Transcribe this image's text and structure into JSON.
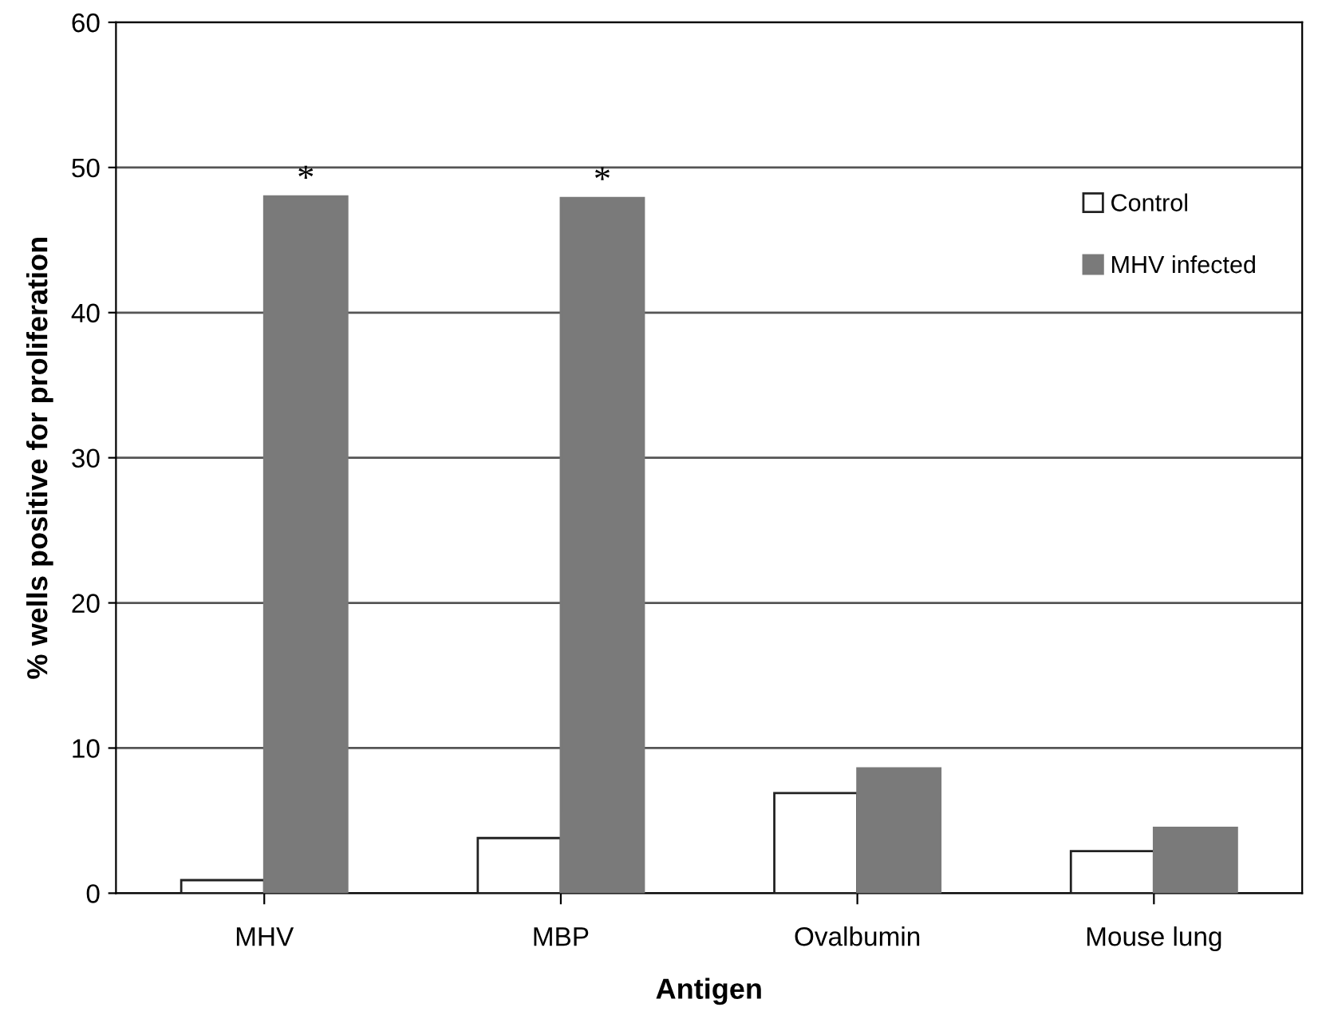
{
  "chart_data": {
    "type": "bar",
    "xlabel": "Antigen",
    "ylabel": "% wells positive for proliferation",
    "categories": [
      "MHV",
      "MBP",
      "Ovalbumin",
      "Mouse lung"
    ],
    "series": [
      {
        "name": "Control",
        "color": "#ffffff",
        "values": [
          0.9,
          3.8,
          6.9,
          2.9
        ]
      },
      {
        "name": "MHV infected",
        "color": "#7a7a7a",
        "values": [
          48.0,
          47.9,
          8.6,
          4.5
        ]
      }
    ],
    "annotations": [
      {
        "text": "*",
        "x": "MHV",
        "y": 48.0
      },
      {
        "text": "*",
        "x": "MBP",
        "y": 47.9
      }
    ],
    "ylim": [
      0,
      60
    ],
    "yticks": [
      0,
      10,
      20,
      30,
      40,
      50,
      60
    ],
    "grid": "y",
    "legend": "right"
  }
}
